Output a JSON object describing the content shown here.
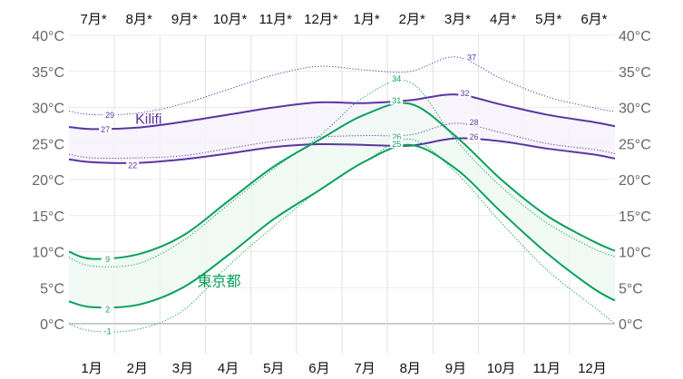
{
  "chart_data": {
    "type": "line",
    "title": "",
    "ylim": [
      -5,
      40
    ],
    "y_ticks": [
      0,
      5,
      10,
      15,
      20,
      25,
      30,
      35,
      40
    ],
    "y_tick_labels": [
      "0°C",
      "5°C",
      "10°C",
      "15°C",
      "20°C",
      "25°C",
      "30°C",
      "35°C",
      "40°C"
    ],
    "x_bottom_labels": [
      "1月",
      "2月",
      "3月",
      "4月",
      "5月",
      "6月",
      "7月",
      "8月",
      "9月",
      "10月",
      "11月",
      "12月"
    ],
    "x_top_labels": [
      "7月*",
      "8月*",
      "9月*",
      "10月*",
      "11月*",
      "12月*",
      "1月*",
      "2月*",
      "3月*",
      "4月*",
      "5月*",
      "6月*"
    ],
    "x_positions_months": [
      0,
      0.5,
      1.5,
      2.5,
      3.5,
      4.5,
      5.5,
      6.5,
      7.5,
      8.5,
      9.5,
      10.5,
      11.5,
      12
    ],
    "grid": true,
    "series": [
      {
        "name": "Kilifi",
        "kind": "high-band",
        "color": "#5b35a3",
        "fill": "#f6f3fb",
        "high": [
          27.3,
          27.0,
          27.2,
          28.0,
          29.0,
          30.0,
          30.7,
          30.6,
          31.0,
          31.8,
          30.4,
          29.0,
          28.0,
          27.4
        ],
        "low": [
          22.8,
          22.4,
          22.3,
          22.8,
          23.6,
          24.5,
          24.9,
          24.8,
          24.7,
          25.7,
          25.3,
          24.3,
          23.5,
          22.9
        ],
        "high_p": [
          29.5,
          29.0,
          29.2,
          30.5,
          32.5,
          34.5,
          35.7,
          35.2,
          35.0,
          37.0,
          34.0,
          31.5,
          30.0,
          29.4
        ],
        "low_p": [
          23.5,
          23.0,
          23.0,
          23.3,
          24.3,
          25.3,
          25.9,
          26.1,
          26.2,
          27.8,
          26.5,
          25.0,
          24.2,
          23.6
        ]
      },
      {
        "name": "東京都",
        "kind": "high-band",
        "color": "#0aa05b",
        "fill": "#eff8f4",
        "high": [
          10.0,
          9.0,
          9.6,
          12.2,
          17.0,
          21.8,
          25.5,
          29.0,
          30.5,
          26.0,
          20.0,
          15.0,
          11.5,
          10.1
        ],
        "low": [
          3.1,
          2.3,
          2.6,
          5.0,
          9.5,
          14.5,
          18.5,
          22.5,
          24.8,
          21.5,
          15.5,
          9.8,
          5.0,
          3.2
        ],
        "high_p": [
          9.2,
          8.0,
          8.3,
          11.5,
          16.5,
          21.5,
          26.0,
          31.5,
          33.5,
          25.5,
          19.0,
          14.0,
          10.5,
          9.3
        ],
        "low_p": [
          0.0,
          -1.0,
          -0.8,
          1.8,
          8.0,
          13.5,
          18.5,
          22.5,
          25.6,
          21.0,
          14.0,
          7.5,
          2.5,
          0.0
        ]
      }
    ],
    "annotations": [
      {
        "text": "29",
        "series": 0,
        "line": "high_p",
        "value": 29,
        "month": 0.9
      },
      {
        "text": "27",
        "series": 0,
        "line": "high",
        "value": 27,
        "month": 0.8
      },
      {
        "text": "22",
        "series": 0,
        "line": "low",
        "value": 22,
        "month": 1.4
      },
      {
        "text": "37",
        "series": 0,
        "line": "high_p",
        "value": 37,
        "month": 8.85
      },
      {
        "text": "32",
        "series": 0,
        "line": "high",
        "value": 32,
        "month": 8.7
      },
      {
        "text": "28",
        "series": 0,
        "line": "low_p",
        "value": 28,
        "month": 8.9
      },
      {
        "text": "26",
        "series": 0,
        "line": "low",
        "value": 26,
        "month": 8.9
      },
      {
        "text": "34",
        "series": 1,
        "line": "high_p",
        "value": 34,
        "month": 7.2
      },
      {
        "text": "31",
        "series": 1,
        "line": "high",
        "value": 31,
        "month": 7.2
      },
      {
        "text": "26",
        "series": 1,
        "line": "low_p",
        "value": 26,
        "month": 7.2
      },
      {
        "text": "25",
        "series": 1,
        "line": "low",
        "value": 25,
        "month": 7.2
      },
      {
        "text": "9",
        "series": 1,
        "line": "high",
        "value": 9,
        "month": 0.85
      },
      {
        "text": "2",
        "series": 1,
        "line": "low",
        "value": 2,
        "month": 0.85
      },
      {
        "text": "-1",
        "series": 1,
        "line": "low_p",
        "value": -1,
        "month": 0.85
      }
    ],
    "series_labels": [
      {
        "text": "Kilifi",
        "series": 0,
        "value": 28.5,
        "month": 1.75
      },
      {
        "text": "東京都",
        "series": 1,
        "value": 6,
        "month": 3.3
      }
    ]
  }
}
